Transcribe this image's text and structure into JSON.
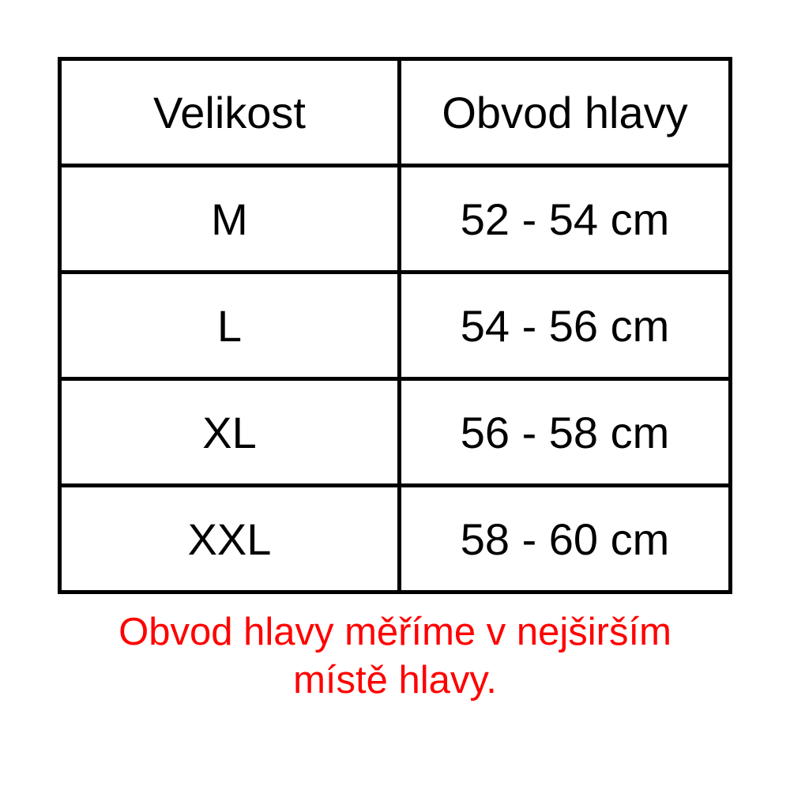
{
  "table": {
    "headers": [
      "Velikost",
      "Obvod hlavy"
    ],
    "rows": [
      [
        "M",
        "52 - 54 cm"
      ],
      [
        "L",
        "54 - 56 cm"
      ],
      [
        "XL",
        "56 - 58 cm"
      ],
      [
        "XXL",
        "58 - 60 cm"
      ]
    ]
  },
  "note": {
    "line1": "Obvod hlavy měříme v nejširším",
    "line2": "místě hlavy.",
    "color": "#ff0000"
  }
}
